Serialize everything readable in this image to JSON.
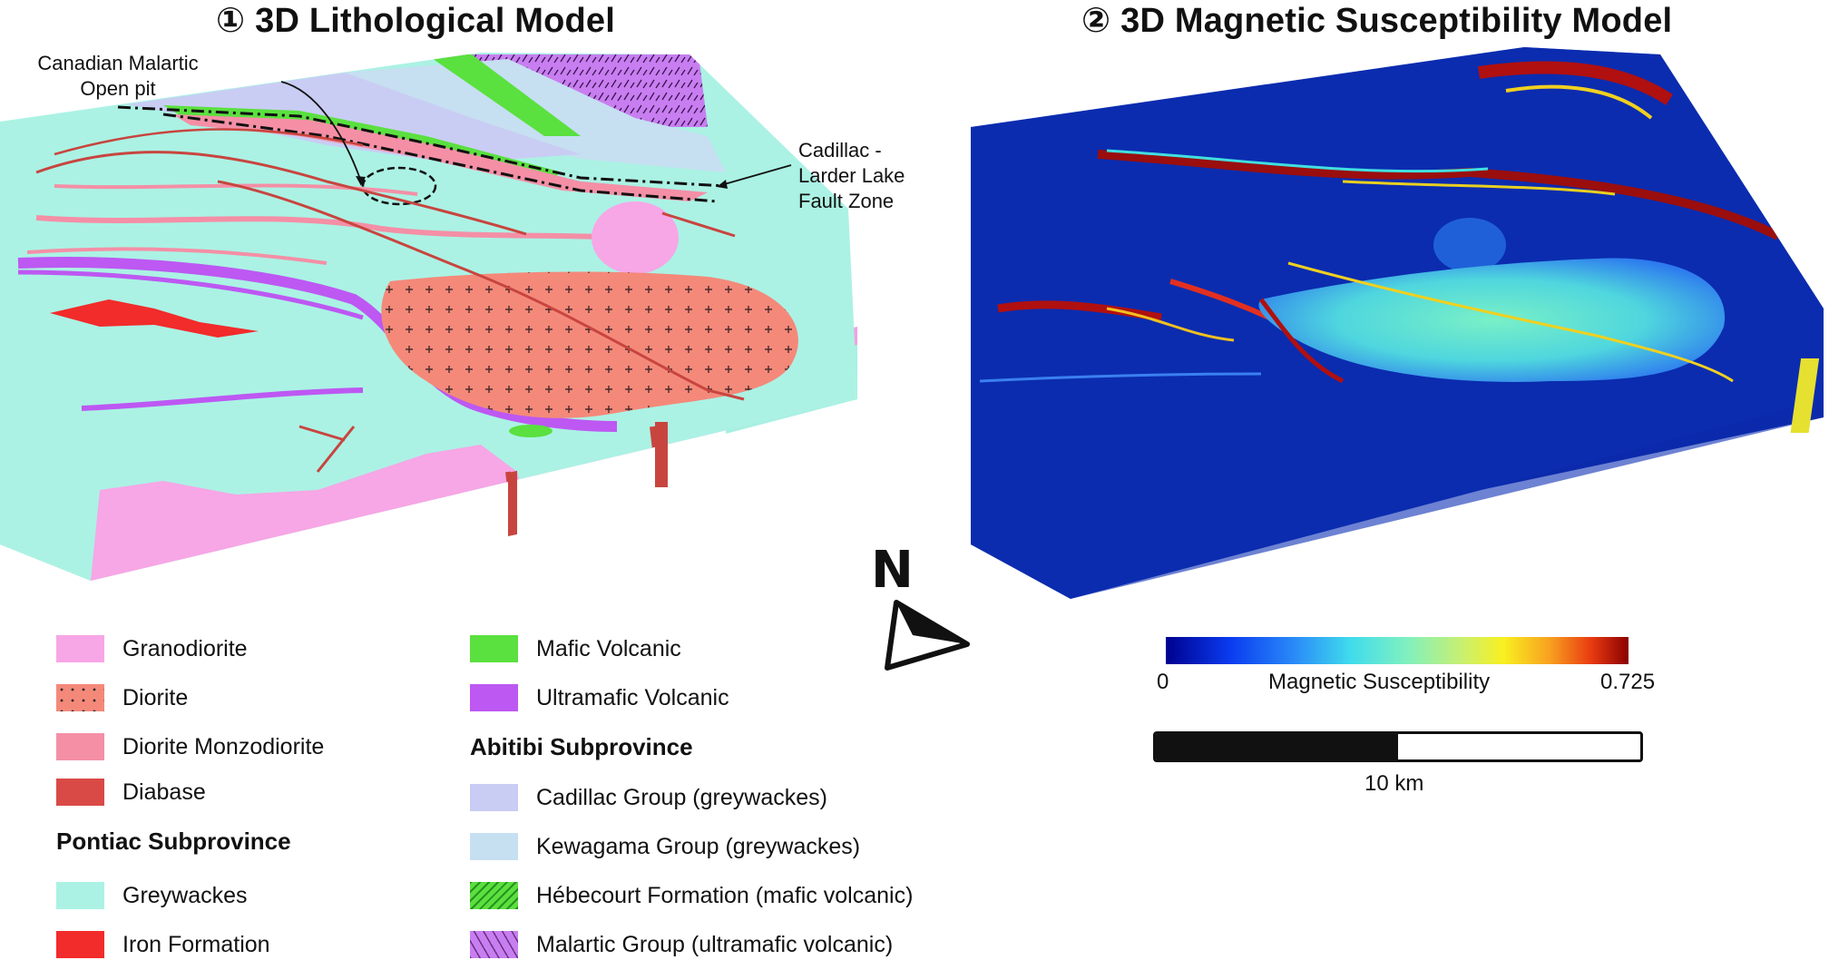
{
  "panel_left": {
    "title": "① 3D Lithological Model"
  },
  "panel_right": {
    "title": "② 3D Magnetic Susceptibility Model"
  },
  "callouts": {
    "open_pit": "Canadian Malartic\nOpen pit",
    "fault_zone": "Cadillac -\nLarder Lake\nFault Zone"
  },
  "north_arrow": {
    "label": "N"
  },
  "legend": {
    "intrusives": [
      {
        "label": "Granodiorite",
        "color": "#f7a6e6"
      },
      {
        "label": "Diorite",
        "color": "#f4897a"
      },
      {
        "label": "Diorite Monzodiorite",
        "color": "#f48fa6"
      },
      {
        "label": "Diabase",
        "color": "#d94a47"
      }
    ],
    "pontiac": {
      "heading": "Pontiac Subprovince",
      "items": [
        {
          "label": "Greywackes",
          "color": "#abf2e4"
        },
        {
          "label": "Iron Formation",
          "color": "#f22b2b"
        }
      ]
    },
    "volcanics": [
      {
        "label": "Mafic Volcanic",
        "color": "#5ae03f"
      },
      {
        "label": "Ultramafic Volcanic",
        "color": "#bd58f2"
      }
    ],
    "abitibi": {
      "heading": "Abitibi Subprovince",
      "items": [
        {
          "label": "Cadillac Group (greywackes)",
          "color": "#c9cdf3"
        },
        {
          "label": "Kewagama Group (greywackes)",
          "color": "#c6dff1"
        },
        {
          "label": "Hébecourt Formation (mafic volcanic)",
          "color": "#5ae03f"
        },
        {
          "label": "Malartic Group (ultramafic volcanic)",
          "color": "#c87ef0"
        }
      ]
    }
  },
  "colorbar": {
    "min_label": "0",
    "max_label": "0.725",
    "title": "Magnetic Susceptibility",
    "min": 0,
    "max": 0.725
  },
  "scale_bar": {
    "label": "10 km"
  }
}
